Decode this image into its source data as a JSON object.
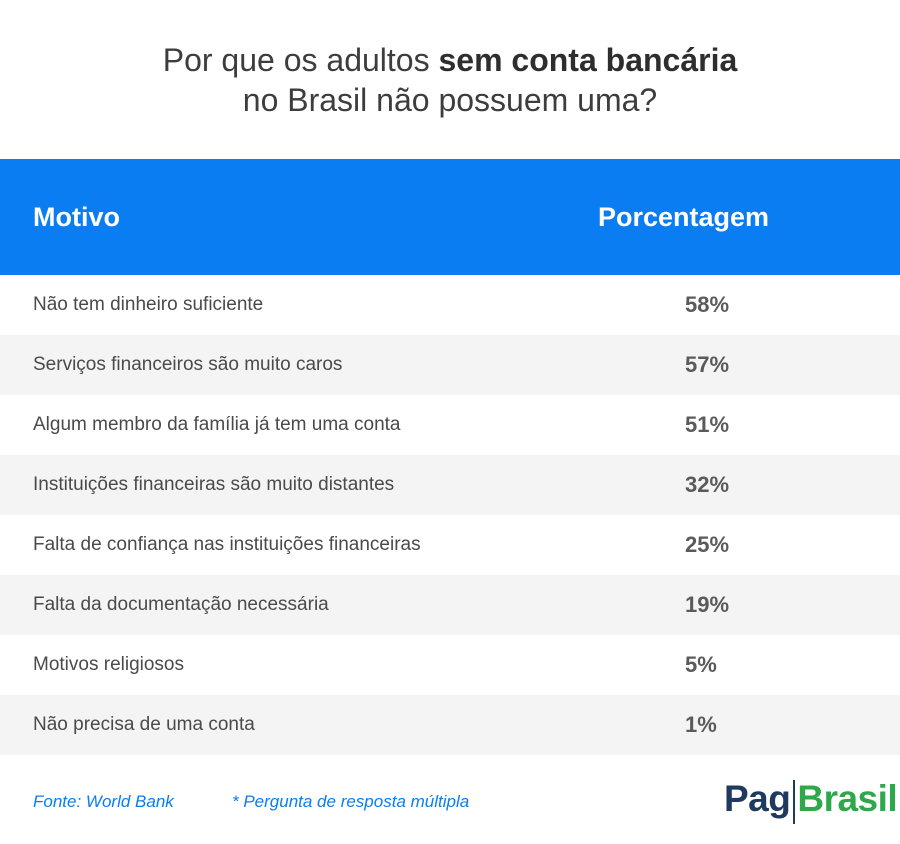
{
  "chart_data": {
    "type": "table",
    "title_parts": [
      {
        "text": "Por que os adultos ",
        "bold": false
      },
      {
        "text": "sem conta bancária",
        "bold": true
      },
      {
        "text": "no Brasil não possuem uma?",
        "bold": false,
        "newline": true
      }
    ],
    "columns": [
      "Motivo",
      "Porcentagem"
    ],
    "rows": [
      {
        "reason": "Não tem dinheiro suficiente",
        "value": 58,
        "label": "58%"
      },
      {
        "reason": "Serviços financeiros são muito caros",
        "value": 57,
        "label": "57%"
      },
      {
        "reason": "Algum membro da família já tem uma conta",
        "value": 51,
        "label": "51%"
      },
      {
        "reason": "Instituições financeiras são muito distantes",
        "value": 32,
        "label": "32%"
      },
      {
        "reason": "Falta de confiança nas instituições financeiras",
        "value": 25,
        "label": "25%"
      },
      {
        "reason": "Falta da documentação necessária",
        "value": 19,
        "label": "19%"
      },
      {
        "reason": "Motivos religiosos",
        "value": 5,
        "label": "5%"
      },
      {
        "reason": "Não precisa de uma conta",
        "value": 1,
        "label": "1%"
      }
    ],
    "header_color": "#0a7df2",
    "alt_row_color": "#f4f4f4"
  },
  "footer": {
    "source": "Fonte: World Bank",
    "note": "* Pergunta de resposta múltipla"
  },
  "logo": {
    "part1": "Pag",
    "part2": "Brasil",
    "color1": "#1e3a5f",
    "color2": "#2ea84a"
  }
}
